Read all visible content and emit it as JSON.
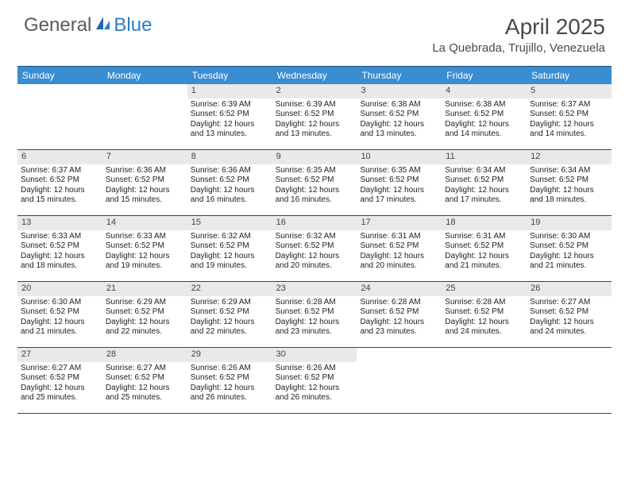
{
  "brand": {
    "part1": "General",
    "part2": "Blue"
  },
  "title": "April 2025",
  "location": "La Quebrada, Trujillo, Venezuela",
  "colors": {
    "header_bg": "#3a8dd0",
    "header_text": "#ffffff",
    "daynum_bg": "#e9e9e9",
    "border": "#1a4d7a",
    "body_text": "#222222",
    "title_text": "#4a4a4a",
    "brand_blue": "#2b7cc4"
  },
  "typography": {
    "title_fontsize": 28,
    "location_fontsize": 15,
    "dow_fontsize": 12,
    "daynum_fontsize": 11,
    "body_fontsize": 10
  },
  "days_of_week": [
    "Sunday",
    "Monday",
    "Tuesday",
    "Wednesday",
    "Thursday",
    "Friday",
    "Saturday"
  ],
  "weeks": [
    [
      {
        "n": "",
        "sr": "",
        "ss": "",
        "dl": ""
      },
      {
        "n": "",
        "sr": "",
        "ss": "",
        "dl": ""
      },
      {
        "n": "1",
        "sr": "6:39 AM",
        "ss": "6:52 PM",
        "dl": "12 hours and 13 minutes."
      },
      {
        "n": "2",
        "sr": "6:39 AM",
        "ss": "6:52 PM",
        "dl": "12 hours and 13 minutes."
      },
      {
        "n": "3",
        "sr": "6:38 AM",
        "ss": "6:52 PM",
        "dl": "12 hours and 13 minutes."
      },
      {
        "n": "4",
        "sr": "6:38 AM",
        "ss": "6:52 PM",
        "dl": "12 hours and 14 minutes."
      },
      {
        "n": "5",
        "sr": "6:37 AM",
        "ss": "6:52 PM",
        "dl": "12 hours and 14 minutes."
      }
    ],
    [
      {
        "n": "6",
        "sr": "6:37 AM",
        "ss": "6:52 PM",
        "dl": "12 hours and 15 minutes."
      },
      {
        "n": "7",
        "sr": "6:36 AM",
        "ss": "6:52 PM",
        "dl": "12 hours and 15 minutes."
      },
      {
        "n": "8",
        "sr": "6:36 AM",
        "ss": "6:52 PM",
        "dl": "12 hours and 16 minutes."
      },
      {
        "n": "9",
        "sr": "6:35 AM",
        "ss": "6:52 PM",
        "dl": "12 hours and 16 minutes."
      },
      {
        "n": "10",
        "sr": "6:35 AM",
        "ss": "6:52 PM",
        "dl": "12 hours and 17 minutes."
      },
      {
        "n": "11",
        "sr": "6:34 AM",
        "ss": "6:52 PM",
        "dl": "12 hours and 17 minutes."
      },
      {
        "n": "12",
        "sr": "6:34 AM",
        "ss": "6:52 PM",
        "dl": "12 hours and 18 minutes."
      }
    ],
    [
      {
        "n": "13",
        "sr": "6:33 AM",
        "ss": "6:52 PM",
        "dl": "12 hours and 18 minutes."
      },
      {
        "n": "14",
        "sr": "6:33 AM",
        "ss": "6:52 PM",
        "dl": "12 hours and 19 minutes."
      },
      {
        "n": "15",
        "sr": "6:32 AM",
        "ss": "6:52 PM",
        "dl": "12 hours and 19 minutes."
      },
      {
        "n": "16",
        "sr": "6:32 AM",
        "ss": "6:52 PM",
        "dl": "12 hours and 20 minutes."
      },
      {
        "n": "17",
        "sr": "6:31 AM",
        "ss": "6:52 PM",
        "dl": "12 hours and 20 minutes."
      },
      {
        "n": "18",
        "sr": "6:31 AM",
        "ss": "6:52 PM",
        "dl": "12 hours and 21 minutes."
      },
      {
        "n": "19",
        "sr": "6:30 AM",
        "ss": "6:52 PM",
        "dl": "12 hours and 21 minutes."
      }
    ],
    [
      {
        "n": "20",
        "sr": "6:30 AM",
        "ss": "6:52 PM",
        "dl": "12 hours and 21 minutes."
      },
      {
        "n": "21",
        "sr": "6:29 AM",
        "ss": "6:52 PM",
        "dl": "12 hours and 22 minutes."
      },
      {
        "n": "22",
        "sr": "6:29 AM",
        "ss": "6:52 PM",
        "dl": "12 hours and 22 minutes."
      },
      {
        "n": "23",
        "sr": "6:28 AM",
        "ss": "6:52 PM",
        "dl": "12 hours and 23 minutes."
      },
      {
        "n": "24",
        "sr": "6:28 AM",
        "ss": "6:52 PM",
        "dl": "12 hours and 23 minutes."
      },
      {
        "n": "25",
        "sr": "6:28 AM",
        "ss": "6:52 PM",
        "dl": "12 hours and 24 minutes."
      },
      {
        "n": "26",
        "sr": "6:27 AM",
        "ss": "6:52 PM",
        "dl": "12 hours and 24 minutes."
      }
    ],
    [
      {
        "n": "27",
        "sr": "6:27 AM",
        "ss": "6:52 PM",
        "dl": "12 hours and 25 minutes."
      },
      {
        "n": "28",
        "sr": "6:27 AM",
        "ss": "6:52 PM",
        "dl": "12 hours and 25 minutes."
      },
      {
        "n": "29",
        "sr": "6:26 AM",
        "ss": "6:52 PM",
        "dl": "12 hours and 26 minutes."
      },
      {
        "n": "30",
        "sr": "6:26 AM",
        "ss": "6:52 PM",
        "dl": "12 hours and 26 minutes."
      },
      {
        "n": "",
        "sr": "",
        "ss": "",
        "dl": ""
      },
      {
        "n": "",
        "sr": "",
        "ss": "",
        "dl": ""
      },
      {
        "n": "",
        "sr": "",
        "ss": "",
        "dl": ""
      }
    ]
  ],
  "labels": {
    "sunrise": "Sunrise: ",
    "sunset": "Sunset: ",
    "daylight": "Daylight: "
  }
}
